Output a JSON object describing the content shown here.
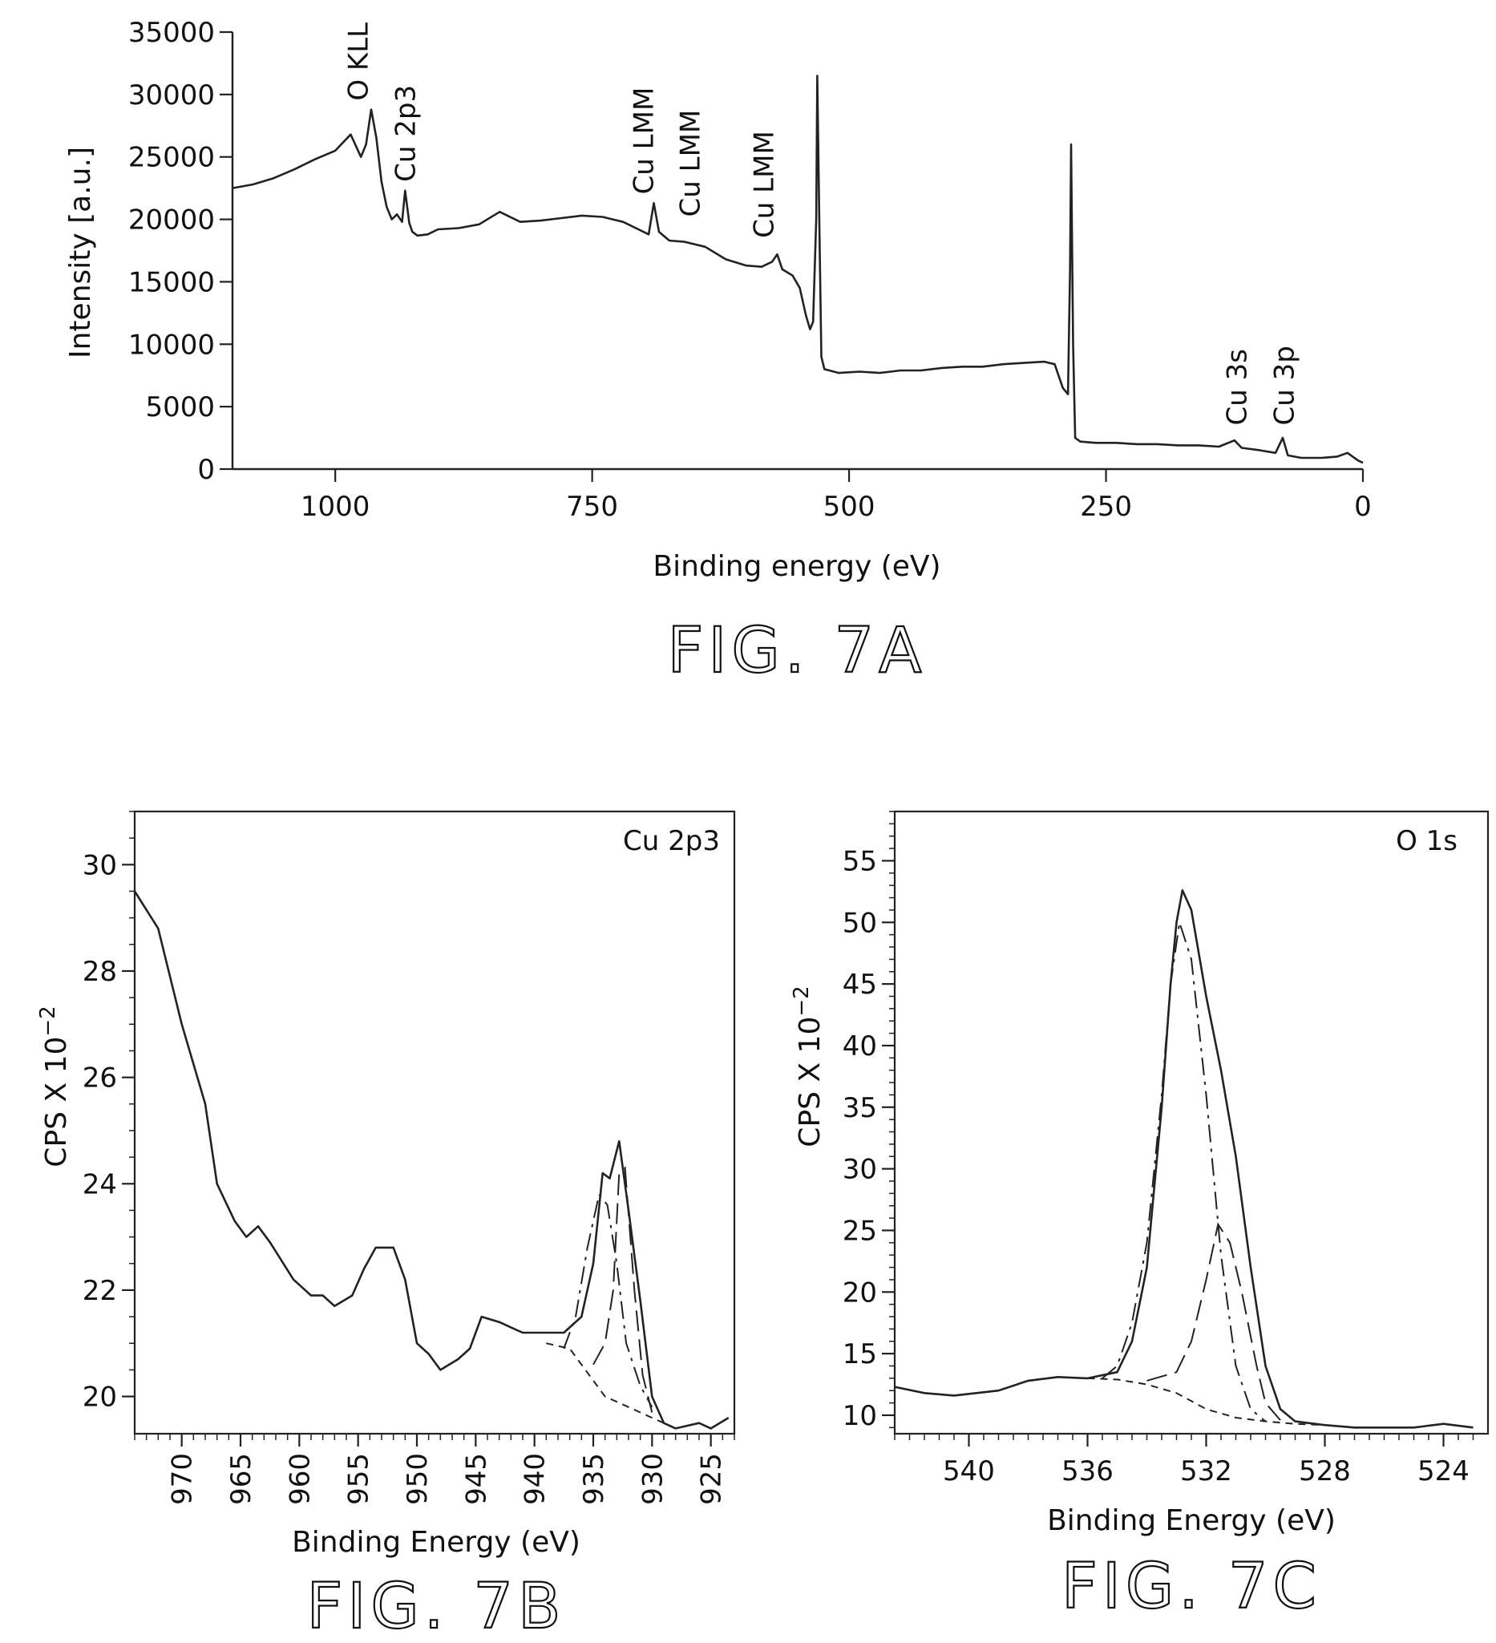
{
  "colors": {
    "ink": "#222222",
    "background": "#ffffff"
  },
  "chart_data": [
    {
      "type": "line",
      "caption": "FIG. 7A",
      "xlabel": "Binding energy (eV)",
      "ylabel": "Intensity [a.u.]",
      "xlim": [
        1100,
        0
      ],
      "ylim": [
        0,
        35000
      ],
      "x_reversed": true,
      "xticks": [
        1000,
        750,
        500,
        250,
        0
      ],
      "yticks": [
        0,
        5000,
        10000,
        15000,
        20000,
        25000,
        30000,
        35000
      ],
      "annotations": [
        {
          "text": "O KLL",
          "x": 978,
          "y": 29500
        },
        {
          "text": "Cu 2p3",
          "x": 932,
          "y": 23000
        },
        {
          "text": "Cu LMM",
          "x": 700,
          "y": 22000
        },
        {
          "text": "Cu LMM",
          "x": 655,
          "y": 20200
        },
        {
          "text": "Cu LMM",
          "x": 583,
          "y": 18500
        },
        {
          "text": "Cu 3s",
          "x": 123,
          "y": 3500
        },
        {
          "text": "Cu 3p",
          "x": 77,
          "y": 3500
        }
      ],
      "series": [
        {
          "values": [
            [
              1100,
              22500
            ],
            [
              1080,
              22800
            ],
            [
              1060,
              23300
            ],
            [
              1040,
              24000
            ],
            [
              1020,
              24800
            ],
            [
              1000,
              25500
            ],
            [
              985,
              26800
            ],
            [
              975,
              25000
            ],
            [
              970,
              26000
            ],
            [
              965,
              28800
            ],
            [
              960,
              26500
            ],
            [
              955,
              23000
            ],
            [
              950,
              21000
            ],
            [
              945,
              20000
            ],
            [
              940,
              20400
            ],
            [
              935,
              19800
            ],
            [
              932,
              22300
            ],
            [
              928,
              19700
            ],
            [
              925,
              19000
            ],
            [
              920,
              18700
            ],
            [
              910,
              18800
            ],
            [
              900,
              19200
            ],
            [
              880,
              19300
            ],
            [
              860,
              19600
            ],
            [
              840,
              20600
            ],
            [
              820,
              19800
            ],
            [
              800,
              19900
            ],
            [
              780,
              20100
            ],
            [
              760,
              20300
            ],
            [
              740,
              20200
            ],
            [
              720,
              19800
            ],
            [
              705,
              19200
            ],
            [
              695,
              18800
            ],
            [
              690,
              21300
            ],
            [
              685,
              19000
            ],
            [
              675,
              18300
            ],
            [
              660,
              18200
            ],
            [
              640,
              17800
            ],
            [
              620,
              16800
            ],
            [
              600,
              16300
            ],
            [
              585,
              16200
            ],
            [
              575,
              16600
            ],
            [
              570,
              17200
            ],
            [
              565,
              16000
            ],
            [
              555,
              15500
            ],
            [
              548,
              14500
            ],
            [
              542,
              12300
            ],
            [
              538,
              11200
            ],
            [
              535,
              11800
            ],
            [
              532,
              20000
            ],
            [
              531,
              31500
            ],
            [
              529,
              20000
            ],
            [
              527,
              9000
            ],
            [
              524,
              8000
            ],
            [
              510,
              7700
            ],
            [
              490,
              7800
            ],
            [
              470,
              7700
            ],
            [
              450,
              7900
            ],
            [
              430,
              7900
            ],
            [
              410,
              8100
            ],
            [
              390,
              8200
            ],
            [
              370,
              8200
            ],
            [
              350,
              8400
            ],
            [
              330,
              8500
            ],
            [
              310,
              8600
            ],
            [
              300,
              8400
            ],
            [
              292,
              6500
            ],
            [
              287,
              6000
            ],
            [
              285,
              16000
            ],
            [
              284,
              26000
            ],
            [
              282,
              10000
            ],
            [
              280,
              2500
            ],
            [
              275,
              2200
            ],
            [
              260,
              2100
            ],
            [
              240,
              2100
            ],
            [
              220,
              2000
            ],
            [
              200,
              2000
            ],
            [
              180,
              1900
            ],
            [
              160,
              1900
            ],
            [
              140,
              1800
            ],
            [
              125,
              2300
            ],
            [
              118,
              1700
            ],
            [
              100,
              1500
            ],
            [
              85,
              1300
            ],
            [
              78,
              2500
            ],
            [
              73,
              1100
            ],
            [
              60,
              900
            ],
            [
              40,
              900
            ],
            [
              25,
              1000
            ],
            [
              15,
              1300
            ],
            [
              5,
              700
            ],
            [
              0,
              500
            ]
          ]
        }
      ]
    },
    {
      "type": "line",
      "caption": "FIG. 7B",
      "xlabel": "Binding Energy (eV)",
      "ylabel": "CPS X 10",
      "ylabel_exponent": "−2",
      "corner_label": "Cu 2p3",
      "xlim": [
        974,
        923
      ],
      "ylim": [
        19.3,
        31
      ],
      "x_reversed": true,
      "xticks": [
        970,
        965,
        960,
        955,
        950,
        945,
        940,
        935,
        930,
        925
      ],
      "yticks": [
        20,
        22,
        24,
        26,
        28,
        30
      ],
      "series": [
        {
          "role": "envelope",
          "values": [
            [
              974,
              29.5
            ],
            [
              972,
              28.8
            ],
            [
              970,
              27.0
            ],
            [
              968,
              25.5
            ],
            [
              967,
              24.0
            ],
            [
              965.5,
              23.3
            ],
            [
              964.5,
              23.0
            ],
            [
              963.5,
              23.2
            ],
            [
              962.5,
              22.9
            ],
            [
              960.5,
              22.2
            ],
            [
              959,
              21.9
            ],
            [
              958,
              21.9
            ],
            [
              957,
              21.7
            ],
            [
              955.5,
              21.9
            ],
            [
              954.5,
              22.4
            ],
            [
              953.5,
              22.8
            ],
            [
              952,
              22.8
            ],
            [
              951,
              22.2
            ],
            [
              950,
              21.0
            ],
            [
              949,
              20.8
            ],
            [
              948,
              20.5
            ],
            [
              946.5,
              20.7
            ],
            [
              945.5,
              20.9
            ],
            [
              944.5,
              21.5
            ],
            [
              943,
              21.4
            ],
            [
              942,
              21.3
            ],
            [
              941,
              21.2
            ],
            [
              939,
              21.2
            ],
            [
              937.5,
              21.2
            ],
            [
              936,
              21.5
            ],
            [
              935,
              22.5
            ],
            [
              934.2,
              24.2
            ],
            [
              933.6,
              24.1
            ],
            [
              932.8,
              24.8
            ],
            [
              932,
              23.5
            ],
            [
              931,
              21.8
            ],
            [
              930,
              20.0
            ],
            [
              929,
              19.5
            ],
            [
              928,
              19.4
            ],
            [
              926,
              19.5
            ],
            [
              925,
              19.4
            ],
            [
              923.5,
              19.6
            ]
          ]
        },
        {
          "role": "component-1",
          "values": [
            [
              937.5,
              20.9
            ],
            [
              936.5,
              21.5
            ],
            [
              935.5,
              22.8
            ],
            [
              934.5,
              23.8
            ],
            [
              933.8,
              23.6
            ],
            [
              933,
              22.5
            ],
            [
              932.2,
              21.0
            ],
            [
              931,
              20.2
            ],
            [
              930,
              19.8
            ]
          ]
        },
        {
          "role": "component-2",
          "values": [
            [
              935,
              20.6
            ],
            [
              934,
              21.0
            ],
            [
              933.3,
              22.0
            ],
            [
              932.8,
              24.2
            ],
            [
              932.3,
              24.3
            ],
            [
              931.5,
              22.0
            ],
            [
              930.8,
              20.4
            ],
            [
              930,
              19.7
            ]
          ]
        },
        {
          "role": "background",
          "values": [
            [
              939,
              21.0
            ],
            [
              937,
              20.9
            ],
            [
              936,
              20.6
            ],
            [
              935,
              20.3
            ],
            [
              934,
              20.0
            ],
            [
              932,
              19.8
            ],
            [
              930,
              19.6
            ],
            [
              929,
              19.5
            ]
          ]
        }
      ]
    },
    {
      "type": "line",
      "caption": "FIG. 7C",
      "xlabel": "Binding Energy (eV)",
      "ylabel": "CPS X 10",
      "ylabel_exponent": "−2",
      "corner_label": "O 1s",
      "xlim": [
        542.5,
        522.5
      ],
      "ylim": [
        8.5,
        59
      ],
      "x_reversed": true,
      "xticks": [
        540,
        536,
        532,
        528,
        524
      ],
      "yticks": [
        10,
        15,
        20,
        25,
        30,
        35,
        40,
        45,
        50,
        55
      ],
      "series": [
        {
          "role": "envelope",
          "values": [
            [
              542.5,
              12.3
            ],
            [
              541.5,
              11.8
            ],
            [
              540.5,
              11.6
            ],
            [
              539,
              12.0
            ],
            [
              538,
              12.8
            ],
            [
              537,
              13.1
            ],
            [
              536,
              13.0
            ],
            [
              535,
              13.5
            ],
            [
              534.5,
              16.0
            ],
            [
              534,
              22.0
            ],
            [
              533.5,
              35.0
            ],
            [
              533.2,
              45.0
            ],
            [
              533,
              50.0
            ],
            [
              532.8,
              52.6
            ],
            [
              532.5,
              51.0
            ],
            [
              532,
              44.0
            ],
            [
              531.5,
              38.0
            ],
            [
              531,
              31.0
            ],
            [
              530.5,
              22.0
            ],
            [
              530,
              14.0
            ],
            [
              529.5,
              10.5
            ],
            [
              529,
              9.5
            ],
            [
              528,
              9.2
            ],
            [
              527,
              9.0
            ],
            [
              525,
              9.0
            ],
            [
              524,
              9.3
            ],
            [
              523,
              9.0
            ]
          ]
        },
        {
          "role": "component-1",
          "values": [
            [
              535.5,
              13.0
            ],
            [
              535,
              14.0
            ],
            [
              534.5,
              17.5
            ],
            [
              534,
              24.0
            ],
            [
              533.5,
              36.0
            ],
            [
              533.2,
              45.0
            ],
            [
              532.9,
              50.0
            ],
            [
              532.5,
              47.0
            ],
            [
              532,
              36.0
            ],
            [
              531.5,
              23.0
            ],
            [
              531,
              14.0
            ],
            [
              530.5,
              10.5
            ],
            [
              530,
              9.5
            ]
          ]
        },
        {
          "role": "component-2",
          "values": [
            [
              534,
              12.8
            ],
            [
              533,
              13.5
            ],
            [
              532.5,
              16.0
            ],
            [
              532,
              21.0
            ],
            [
              531.6,
              25.5
            ],
            [
              531.2,
              24.0
            ],
            [
              530.8,
              20.0
            ],
            [
              530.3,
              14.0
            ],
            [
              530,
              11.0
            ],
            [
              529.5,
              9.6
            ]
          ]
        },
        {
          "role": "background",
          "values": [
            [
              536,
              13.0
            ],
            [
              535,
              12.9
            ],
            [
              534,
              12.5
            ],
            [
              533,
              11.8
            ],
            [
              532,
              10.5
            ],
            [
              531,
              9.8
            ],
            [
              530,
              9.5
            ],
            [
              529,
              9.3
            ],
            [
              528,
              9.2
            ]
          ]
        }
      ]
    }
  ]
}
